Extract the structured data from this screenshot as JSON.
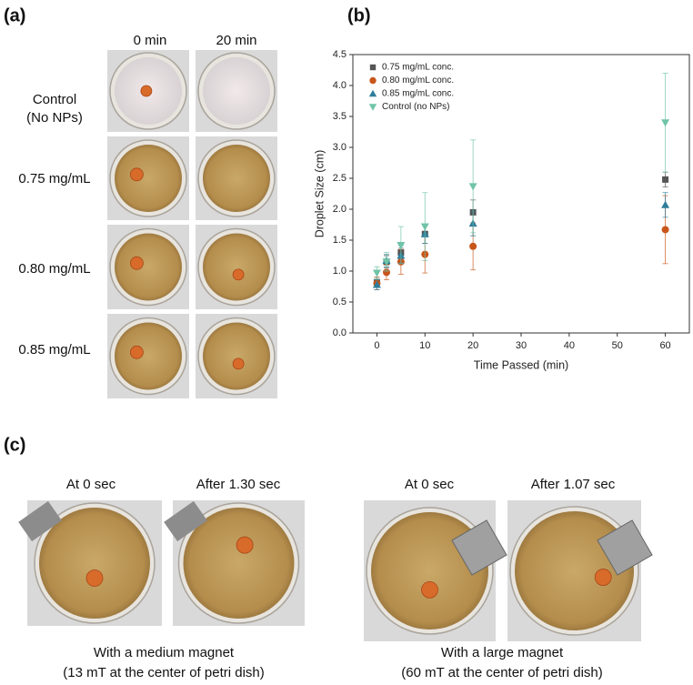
{
  "panel_a": {
    "label": "(a)",
    "columns": [
      "0 min",
      "20 min"
    ],
    "rows": [
      [
        "Control",
        "(No NPs)"
      ],
      [
        "0.75 mg/mL"
      ],
      [
        "0.80 mg/mL"
      ],
      [
        "0.85 mg/mL"
      ]
    ]
  },
  "panel_c": {
    "label": "(c)",
    "frames": [
      "At 0 sec",
      "After 1.30 sec",
      "At 0 sec",
      "After 1.07 sec"
    ],
    "captions": [
      [
        "With a medium magnet",
        "(13 mT at the center of petri dish)"
      ],
      [
        "With a large magnet",
        "(60 mT at the center of petri dish)"
      ]
    ]
  },
  "chart_data": {
    "type": "scatter",
    "panel_label": "(b)",
    "x_label": "Time Passed (min)",
    "y_label": "Droplet Size (cm)",
    "x": [
      0,
      2,
      5,
      10,
      20,
      60
    ],
    "series": [
      {
        "name": "0.75 mg/mL conc.",
        "color": "#555555",
        "marker": "square",
        "values": [
          0.82,
          1.15,
          1.3,
          1.6,
          1.95,
          2.48
        ],
        "errors": [
          0.08,
          0.1,
          0.12,
          0.15,
          0.2,
          0.12
        ]
      },
      {
        "name": "0.80 mg/mL conc.",
        "color": "#c8561a",
        "marker": "circle",
        "values": [
          0.8,
          0.98,
          1.15,
          1.27,
          1.4,
          1.67
        ],
        "errors": [
          0.1,
          0.12,
          0.2,
          0.3,
          0.38,
          0.55
        ]
      },
      {
        "name": "0.85 mg/mL conc.",
        "color": "#2e7d9a",
        "marker": "triangle-up",
        "values": [
          0.78,
          1.17,
          1.25,
          1.6,
          1.77,
          2.07
        ],
        "errors": [
          0.08,
          0.1,
          0.12,
          0.15,
          0.2,
          0.2
        ]
      },
      {
        "name": "Control (no NPs)",
        "color": "#6fc4a8",
        "marker": "triangle-down",
        "values": [
          0.97,
          1.15,
          1.42,
          1.72,
          2.37,
          3.4
        ],
        "errors": [
          0.1,
          0.15,
          0.3,
          0.55,
          0.75,
          0.8
        ]
      }
    ],
    "xlim": [
      -5,
      65
    ],
    "xticks": [
      0,
      10,
      20,
      30,
      40,
      50,
      60
    ],
    "ylim": [
      0,
      4.5
    ],
    "yticks": [
      {
        "value": 0,
        "label": "0.0"
      },
      0.5,
      {
        "value": 1,
        "label": "1.0"
      },
      1.5,
      {
        "value": 2,
        "label": "2.0"
      },
      2.5,
      {
        "value": 3,
        "label": "3.0"
      },
      3.5,
      {
        "value": 4,
        "label": "4.0"
      },
      4.5
    ],
    "legend": "upper left"
  }
}
